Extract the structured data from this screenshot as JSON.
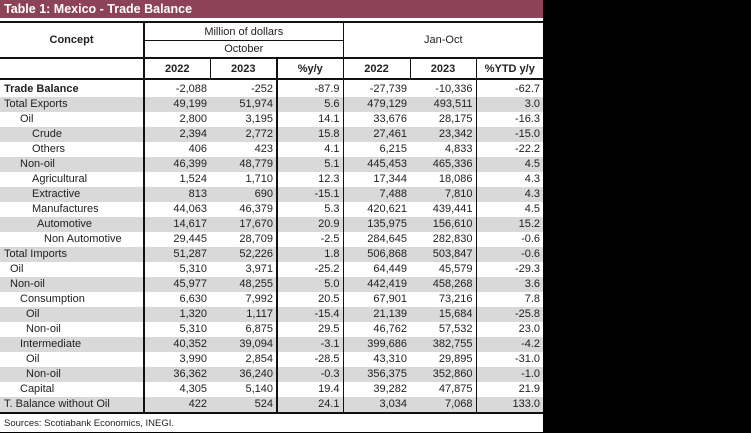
{
  "title": "Table 1: Mexico - Trade Balance",
  "header": {
    "concept": "Concept",
    "units": "Million of dollars",
    "monthly_period": "October",
    "ytd_period": "Jan-Oct",
    "columns": [
      "2022",
      "2023",
      "%y/y",
      "2022",
      "2023",
      "%YTD y/y"
    ]
  },
  "rows": [
    {
      "label": "Trade Balance",
      "level": 0,
      "bold": true,
      "values": [
        "-2,088",
        "-252",
        "-87.9",
        "-27,739",
        "-10,336",
        "-62.7"
      ]
    },
    {
      "label": "Total Exports",
      "level": 0,
      "values": [
        "49,199",
        "51,974",
        "5.6",
        "479,129",
        "493,511",
        "3.0"
      ]
    },
    {
      "label": "Oil",
      "level": 1,
      "values": [
        "2,800",
        "3,195",
        "14.1",
        "33,676",
        "28,175",
        "-16.3"
      ]
    },
    {
      "label": "Crude",
      "level": 2,
      "values": [
        "2,394",
        "2,772",
        "15.8",
        "27,461",
        "23,342",
        "-15.0"
      ]
    },
    {
      "label": "Others",
      "level": 2,
      "values": [
        "406",
        "423",
        "4.1",
        "6,215",
        "4,833",
        "-22.2"
      ]
    },
    {
      "label": "Non-oil",
      "level": 1,
      "values": [
        "46,399",
        "48,779",
        "5.1",
        "445,453",
        "465,336",
        "4.5"
      ]
    },
    {
      "label": "Agricultural",
      "level": 2,
      "values": [
        "1,524",
        "1,710",
        "12.3",
        "17,344",
        "18,086",
        "4.3"
      ]
    },
    {
      "label": "Extractive",
      "level": 2,
      "values": [
        "813",
        "690",
        "-15.1",
        "7,488",
        "7,810",
        "4.3"
      ]
    },
    {
      "label": "Manufactures",
      "level": 2,
      "values": [
        "44,063",
        "46,379",
        "5.3",
        "420,621",
        "439,441",
        "4.5"
      ]
    },
    {
      "label": "Automotive",
      "level": 3,
      "values": [
        "14,617",
        "17,670",
        "20.9",
        "135,975",
        "156,610",
        "15.2"
      ]
    },
    {
      "label": "Non Automotive",
      "level": 4,
      "values": [
        "29,445",
        "28,709",
        "-2.5",
        "284,645",
        "282,830",
        "-0.6"
      ]
    },
    {
      "label": "Total Imports",
      "level": 0,
      "values": [
        "51,287",
        "52,226",
        "1.8",
        "506,868",
        "503,847",
        "-0.6"
      ]
    },
    {
      "label": "Oil",
      "level": 5,
      "values": [
        "5,310",
        "3,971",
        "-25.2",
        "64,449",
        "45,579",
        "-29.3"
      ]
    },
    {
      "label": "Non-oil",
      "level": 5,
      "values": [
        "45,977",
        "48,255",
        "5.0",
        "442,419",
        "458,268",
        "3.6"
      ]
    },
    {
      "label": "Consumption",
      "level": 6,
      "values": [
        "6,630",
        "7,992",
        "20.5",
        "67,901",
        "73,216",
        "7.8"
      ]
    },
    {
      "label": "Oil",
      "level": 7,
      "values": [
        "1,320",
        "1,117",
        "-15.4",
        "21,139",
        "15,684",
        "-25.8"
      ]
    },
    {
      "label": "Non-oil",
      "level": 7,
      "values": [
        "5,310",
        "6,875",
        "29.5",
        "46,762",
        "57,532",
        "23.0"
      ]
    },
    {
      "label": "Intermediate",
      "level": 6,
      "values": [
        "40,352",
        "39,094",
        "-3.1",
        "399,686",
        "382,755",
        "-4.2"
      ]
    },
    {
      "label": "Oil",
      "level": 7,
      "values": [
        "3,990",
        "2,854",
        "-28.5",
        "43,310",
        "29,895",
        "-31.0"
      ]
    },
    {
      "label": "Non-oil",
      "level": 7,
      "values": [
        "36,362",
        "36,240",
        "-0.3",
        "356,375",
        "352,860",
        "-1.0"
      ]
    },
    {
      "label": "Capital",
      "level": 6,
      "values": [
        "4,305",
        "5,140",
        "19.4",
        "39,282",
        "47,875",
        "21.9"
      ]
    },
    {
      "label": "T. Balance without Oil",
      "level": 0,
      "values": [
        "422",
        "524",
        "24.1",
        "3,034",
        "7,068",
        "133.0"
      ]
    }
  ],
  "source": "Sources: Scotiabank Economics, INEGI.",
  "colors": {
    "title_bar": "#8c4357",
    "row_shade": "#d9d9d9",
    "background_outside": "#000000"
  }
}
